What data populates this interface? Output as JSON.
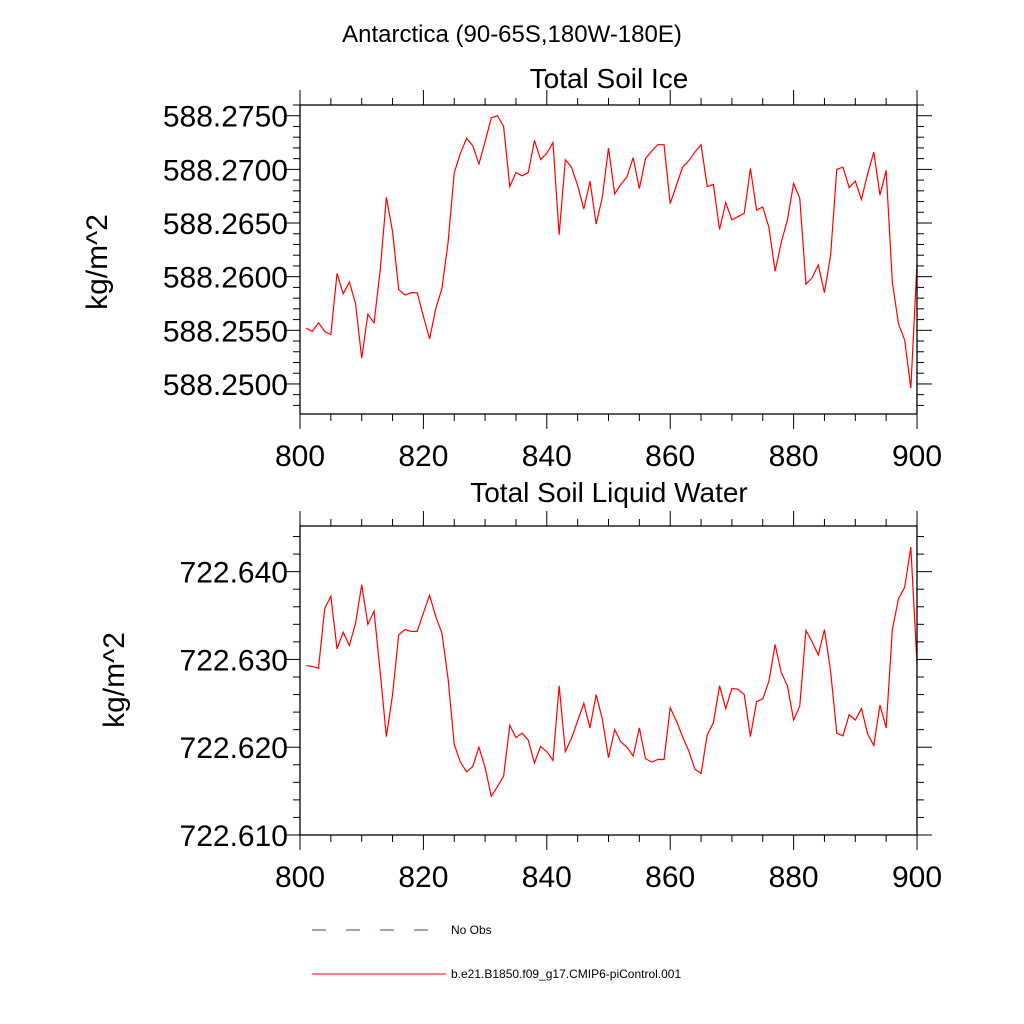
{
  "header": {
    "region_title": "Antarctica (90-65S,180W-180E)"
  },
  "colors": {
    "model": "#ff0000",
    "obs": "#3b4a8a",
    "axis": "#000000"
  },
  "legend": {
    "obs_label": "No Obs",
    "model_label": "b.e21.B1850.f09_g17.CMIP6-piControl.001"
  },
  "chart_data": [
    {
      "type": "line",
      "title": "Total Soil Ice",
      "ylabel": "kg/m^2",
      "xlabel": "",
      "xlim": [
        800,
        900
      ],
      "ylim": [
        588.2472,
        588.276
      ],
      "xticks": [
        800,
        820,
        840,
        860,
        880,
        900
      ],
      "xtick_labels": [
        "800",
        "820",
        "840",
        "860",
        "880",
        "900"
      ],
      "yticks": [
        588.25,
        588.255,
        588.26,
        588.265,
        588.27,
        588.275
      ],
      "ytick_labels": [
        "588.2500",
        "588.2550",
        "588.2600",
        "588.2650",
        "588.2700",
        "588.2750"
      ],
      "series": [
        {
          "name": "b.e21.B1850.f09_g17.CMIP6-piControl.001",
          "x_start": 801,
          "values": [
            588.2552,
            588.2549,
            588.2557,
            588.2549,
            588.2546,
            588.2603,
            588.2584,
            588.2595,
            588.2575,
            588.2524,
            588.2565,
            588.2557,
            588.2606,
            588.2674,
            588.2642,
            588.2588,
            588.2583,
            588.2585,
            588.2585,
            588.2563,
            588.2542,
            588.257,
            588.2589,
            588.2632,
            588.2697,
            588.2715,
            588.2729,
            588.2722,
            588.2705,
            588.2726,
            588.2748,
            588.275,
            588.274,
            588.2684,
            588.2697,
            588.2694,
            588.2697,
            588.2727,
            588.2709,
            588.2715,
            588.2725,
            588.2639,
            588.2709,
            588.2702,
            588.2685,
            588.2663,
            588.2689,
            588.2649,
            588.2674,
            588.272,
            588.2677,
            588.2686,
            588.2693,
            588.2711,
            588.2682,
            588.271,
            588.2717,
            588.2723,
            588.2723,
            588.2668,
            588.2685,
            588.2702,
            588.2708,
            588.2716,
            588.2723,
            588.2684,
            588.2686,
            588.2644,
            588.2669,
            588.2653,
            588.2656,
            588.2659,
            588.2701,
            588.2662,
            588.2665,
            588.2646,
            588.2605,
            588.2632,
            588.2653,
            588.2687,
            588.2673,
            588.2593,
            588.2599,
            588.2611,
            588.2585,
            588.262,
            588.27,
            588.2702,
            588.2683,
            588.2689,
            588.2672,
            588.2696,
            588.2716,
            588.2676,
            588.2699,
            588.2595,
            588.2556,
            588.2541,
            588.2496,
            588.2612
          ]
        }
      ]
    },
    {
      "type": "line",
      "title": "Total Soil Liquid Water",
      "ylabel": "kg/m^2",
      "xlabel": "",
      "xlim": [
        800,
        900
      ],
      "ylim": [
        722.61,
        722.6452
      ],
      "xticks": [
        800,
        820,
        840,
        860,
        880,
        900
      ],
      "xtick_labels": [
        "800",
        "820",
        "840",
        "860",
        "880",
        "900"
      ],
      "yticks": [
        722.61,
        722.62,
        722.63,
        722.64
      ],
      "ytick_labels": [
        "722.610",
        "722.620",
        "722.630",
        "722.640"
      ],
      "series": [
        {
          "name": "b.e21.B1850.f09_g17.CMIP6-piControl.001",
          "x_start": 801,
          "values": [
            722.6293,
            722.6292,
            722.629,
            722.6358,
            722.6372,
            722.6312,
            722.6331,
            722.6316,
            722.6341,
            722.6385,
            722.634,
            722.6355,
            722.6285,
            722.6212,
            722.626,
            722.6328,
            722.6334,
            722.6332,
            722.6332,
            722.6353,
            722.6373,
            722.6349,
            722.633,
            722.6278,
            722.6203,
            722.6183,
            722.6172,
            722.6178,
            722.62,
            722.6177,
            722.6144,
            722.6155,
            722.6167,
            722.6225,
            722.6211,
            722.6216,
            722.6208,
            722.6182,
            722.6201,
            722.6195,
            722.6185,
            722.627,
            722.6195,
            722.621,
            722.623,
            722.625,
            722.6222,
            722.626,
            722.6232,
            722.6188,
            722.622,
            722.6206,
            722.62,
            722.619,
            722.6222,
            722.6187,
            722.6183,
            722.6186,
            722.6186,
            722.6245,
            722.623,
            722.6212,
            722.6196,
            722.6175,
            722.617,
            722.6214,
            722.6228,
            722.627,
            722.6244,
            722.6267,
            722.6266,
            722.626,
            722.6212,
            722.6252,
            722.6255,
            722.6275,
            722.6317,
            722.6285,
            722.627,
            722.6231,
            722.6247,
            722.6333,
            722.632,
            722.6305,
            722.6334,
            722.6286,
            722.6216,
            722.6213,
            722.6237,
            722.6231,
            722.6244,
            722.6215,
            722.6202,
            722.6248,
            722.6222,
            722.6334,
            722.6369,
            722.6382,
            722.6428,
            722.6295
          ]
        }
      ]
    }
  ]
}
